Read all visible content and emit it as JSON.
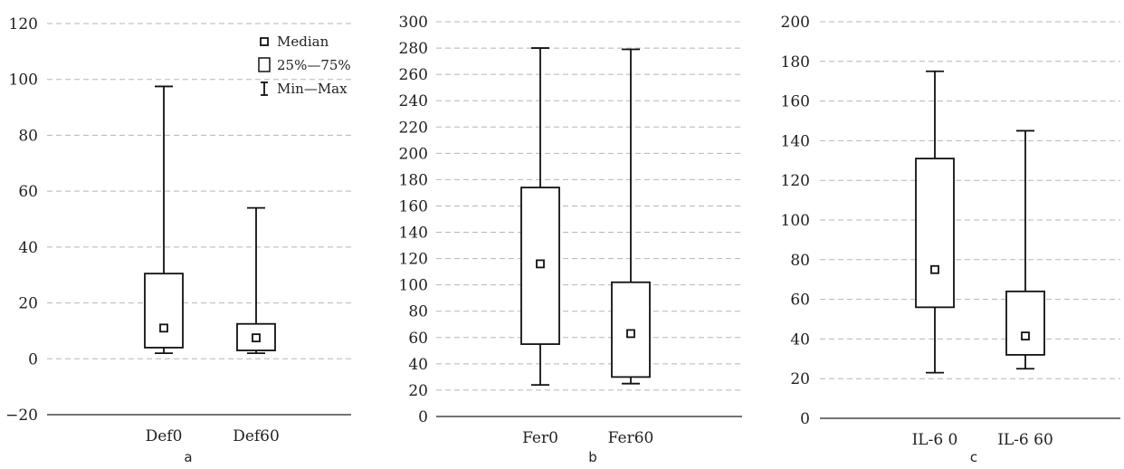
{
  "chart_data": [
    {
      "type": "box",
      "panel_label": "a",
      "ylim": [
        -20,
        120
      ],
      "yticks": [
        -20,
        0,
        20,
        40,
        60,
        80,
        100,
        120
      ],
      "categories": [
        "Def0",
        "Def60"
      ],
      "boxes": [
        {
          "category": "Def0",
          "min": 2,
          "q1": 4,
          "median": 11,
          "q3": 30.5,
          "max": 97.5
        },
        {
          "category": "Def60",
          "min": 2,
          "q1": 3,
          "median": 7.5,
          "q3": 12.5,
          "max": 54
        }
      ],
      "grid": true,
      "legend": {
        "position": "top-right",
        "items": [
          {
            "symbol": "median",
            "label": "Median"
          },
          {
            "symbol": "box",
            "label": "25%—75%"
          },
          {
            "symbol": "whisker",
            "label": "Min—Max"
          }
        ]
      }
    },
    {
      "type": "box",
      "panel_label": "b",
      "ylim": [
        0,
        300
      ],
      "yticks": [
        0,
        20,
        40,
        60,
        80,
        100,
        120,
        140,
        160,
        180,
        200,
        220,
        240,
        260,
        280,
        300
      ],
      "categories": [
        "Fer0",
        "Fer60"
      ],
      "boxes": [
        {
          "category": "Fer0",
          "min": 24,
          "q1": 55,
          "median": 116,
          "q3": 174,
          "max": 280
        },
        {
          "category": "Fer60",
          "min": 25,
          "q1": 30,
          "median": 63,
          "q3": 102,
          "max": 279
        }
      ],
      "grid": true
    },
    {
      "type": "box",
      "panel_label": "c",
      "ylim": [
        0,
        200
      ],
      "yticks": [
        0,
        20,
        40,
        60,
        80,
        100,
        120,
        140,
        160,
        180,
        200
      ],
      "categories": [
        "IL-6 0",
        "IL-6 60"
      ],
      "boxes": [
        {
          "category": "IL-6 0",
          "min": 23,
          "q1": 56,
          "median": 75,
          "q3": 131,
          "max": 175
        },
        {
          "category": "IL-6 60",
          "min": 25,
          "q1": 32,
          "median": 41.5,
          "q3": 64,
          "max": 145
        }
      ],
      "grid": true
    }
  ]
}
